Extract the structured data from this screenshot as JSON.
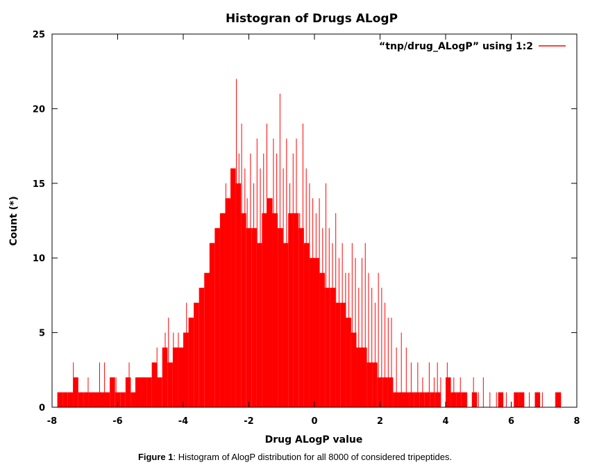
{
  "chart_data": {
    "type": "bar",
    "title": "Histogran of  Drugs ALogP",
    "xlabel": "Drug   ALogP  value",
    "ylabel": "Count (*)",
    "xlim": [
      -8,
      8
    ],
    "ylim": [
      0,
      25
    ],
    "xticks": [
      "-8",
      "-6",
      "-4",
      "-2",
      "0",
      "2",
      "4",
      "6",
      "8"
    ],
    "yticks": [
      "0",
      "5",
      "10",
      "15",
      "20",
      "25"
    ],
    "grid": false,
    "legend_position": "top-right",
    "series": [
      {
        "name": "“tnp/drug_ALogP”  using   1:2",
        "color": "#ff0000",
        "x": [
          -7.76,
          -7.6,
          -7.44,
          -7.28,
          -7.12,
          -6.96,
          -6.8,
          -6.64,
          -6.48,
          -6.32,
          -6.16,
          -6.0,
          -5.84,
          -5.68,
          -5.52,
          -5.36,
          -5.2,
          -5.04,
          -4.88,
          -4.72,
          -4.56,
          -4.4,
          -4.24,
          -4.08,
          -3.92,
          -3.76,
          -3.6,
          -3.44,
          -3.28,
          -3.12,
          -2.96,
          -2.8,
          -2.64,
          -2.48,
          -2.32,
          -2.16,
          -2.0,
          -1.84,
          -1.68,
          -1.52,
          -1.36,
          -1.2,
          -1.04,
          -0.88,
          -0.72,
          -0.56,
          -0.4,
          -0.24,
          -0.08,
          0.08,
          0.24,
          0.4,
          0.56,
          0.72,
          0.88,
          1.04,
          1.2,
          1.36,
          1.52,
          1.68,
          1.84,
          2.0,
          2.16,
          2.32,
          2.48,
          2.64,
          2.8,
          2.96,
          3.12,
          3.28,
          3.44,
          3.6,
          3.76,
          3.92,
          4.08,
          4.24,
          4.4,
          4.56,
          4.72,
          4.88,
          5.04,
          5.2,
          5.36,
          5.52,
          5.68,
          5.84,
          6.0,
          6.16,
          6.32,
          6.48,
          6.64,
          6.8,
          6.96,
          7.12,
          7.28,
          7.44
        ],
        "values": [
          1,
          1,
          1,
          2,
          1,
          1,
          1,
          1,
          1,
          1,
          2,
          1,
          1,
          2,
          1,
          2,
          2,
          2,
          3,
          2,
          4,
          3,
          4,
          4,
          5,
          6,
          7,
          8,
          9,
          11,
          12,
          13,
          14,
          16,
          15,
          13,
          12,
          12,
          11,
          13,
          14,
          13,
          12,
          11,
          13,
          13,
          12,
          11,
          10,
          10,
          9,
          8,
          8,
          7,
          7,
          6,
          5,
          4,
          4,
          3,
          3,
          2,
          2,
          2,
          1,
          1,
          1,
          1,
          1,
          1,
          1,
          1,
          1,
          0,
          2,
          1,
          1,
          1,
          0,
          1,
          0,
          0,
          0,
          0,
          1,
          0,
          0,
          1,
          1,
          0,
          0,
          1,
          0,
          0,
          0,
          1
        ],
        "spike_x": [
          -7.7,
          -7.35,
          -7.25,
          -6.9,
          -6.55,
          -6.4,
          -6.2,
          -6.05,
          -5.65,
          -5.45,
          -5.3,
          -5.1,
          -4.9,
          -4.8,
          -4.55,
          -4.45,
          -4.3,
          -4.15,
          -4.05,
          -3.9,
          -3.8,
          -3.65,
          -3.55,
          -3.4,
          -3.3,
          -3.2,
          -3.1,
          -3.0,
          -2.9,
          -2.8,
          -2.7,
          -2.62,
          -2.52,
          -2.45,
          -2.38,
          -2.3,
          -2.22,
          -2.12,
          -2.05,
          -1.95,
          -1.85,
          -1.75,
          -1.65,
          -1.55,
          -1.45,
          -1.35,
          -1.25,
          -1.15,
          -1.05,
          -0.95,
          -0.85,
          -0.75,
          -0.65,
          -0.55,
          -0.45,
          -0.35,
          -0.25,
          -0.15,
          -0.05,
          0.05,
          0.15,
          0.25,
          0.35,
          0.45,
          0.55,
          0.65,
          0.75,
          0.85,
          0.95,
          1.05,
          1.15,
          1.25,
          1.35,
          1.45,
          1.55,
          1.65,
          1.75,
          1.85,
          1.95,
          2.05,
          2.15,
          2.25,
          2.35,
          2.5,
          2.65,
          2.8,
          2.95,
          3.15,
          3.3,
          3.5,
          3.65,
          3.75,
          3.85,
          4.05,
          4.25,
          4.45,
          4.55,
          4.65,
          4.85,
          5.0,
          5.15,
          5.35,
          5.55,
          5.85,
          6.35,
          6.55,
          6.75,
          6.95,
          7.35,
          7.45
        ],
        "spike_values": [
          1,
          3,
          2,
          2,
          3,
          3,
          2,
          2,
          3,
          2,
          2,
          2,
          2,
          4,
          5,
          6,
          5,
          5,
          4,
          7,
          6,
          7,
          5,
          6,
          7,
          9,
          11,
          10,
          12,
          13,
          15,
          14,
          12,
          15,
          22,
          17,
          19,
          16,
          14,
          17,
          15,
          18,
          16,
          17,
          19,
          14,
          18,
          17,
          21,
          16,
          18,
          15,
          17,
          18,
          13,
          19,
          16,
          15,
          14,
          13,
          14,
          12,
          15,
          12,
          11,
          13,
          10,
          11,
          9,
          9,
          11,
          10,
          8,
          10,
          11,
          9,
          8,
          7,
          9,
          8,
          7,
          6,
          6,
          4,
          5,
          4,
          3,
          3,
          2,
          3,
          2,
          3,
          2,
          3,
          2,
          2,
          1,
          1,
          2,
          1,
          2,
          1,
          1,
          1,
          1,
          1,
          1,
          1,
          1,
          1
        ]
      }
    ]
  },
  "caption": {
    "label": "Figure 1",
    "text": ": Histogram of AlogP distribution for all 8000 of considered tripeptides."
  }
}
